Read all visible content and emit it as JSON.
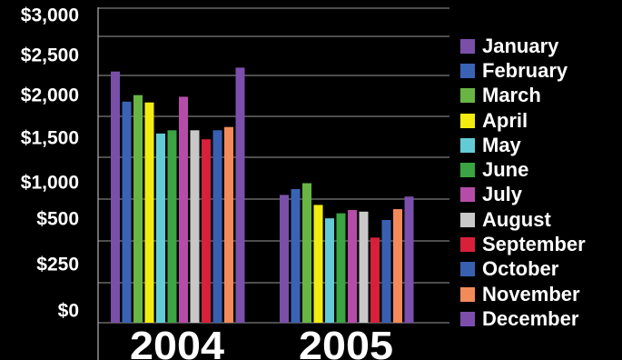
{
  "chart_data": {
    "type": "bar",
    "title": "",
    "xlabel": "",
    "ylabel": "",
    "categories": [
      "2004",
      "2005"
    ],
    "y_ticks": [
      "$0",
      "$250",
      "$500",
      "$1,000",
      "$1,500",
      "$2,000",
      "$2,500",
      "$3,000"
    ],
    "y_tick_values": [
      0,
      250,
      500,
      1000,
      1500,
      2000,
      2500,
      3000
    ],
    "grid": true,
    "legend_position": "right",
    "series": [
      {
        "name": "January",
        "color": "#7a4fa8",
        "values": [
          2550,
          1050
        ]
      },
      {
        "name": "February",
        "color": "#3a63b5",
        "values": [
          2180,
          1120
        ]
      },
      {
        "name": "March",
        "color": "#69b544",
        "values": [
          2260,
          1190
        ]
      },
      {
        "name": "April",
        "color": "#f2ec10",
        "values": [
          2170,
          930
        ]
      },
      {
        "name": "May",
        "color": "#63cbd6",
        "values": [
          1790,
          770
        ]
      },
      {
        "name": "June",
        "color": "#3aa542",
        "values": [
          1830,
          830
        ]
      },
      {
        "name": "July",
        "color": "#b54da8",
        "values": [
          2240,
          870
        ]
      },
      {
        "name": "August",
        "color": "#c8c8c8",
        "values": [
          1830,
          850
        ]
      },
      {
        "name": "September",
        "color": "#d8203a",
        "values": [
          1720,
          540
        ]
      },
      {
        "name": "October",
        "color": "#3960b0",
        "values": [
          1830,
          750
        ]
      },
      {
        "name": "November",
        "color": "#f28a5a",
        "values": [
          1870,
          880
        ]
      },
      {
        "name": "December",
        "color": "#7d4fac",
        "values": [
          2600,
          1030
        ]
      }
    ]
  }
}
